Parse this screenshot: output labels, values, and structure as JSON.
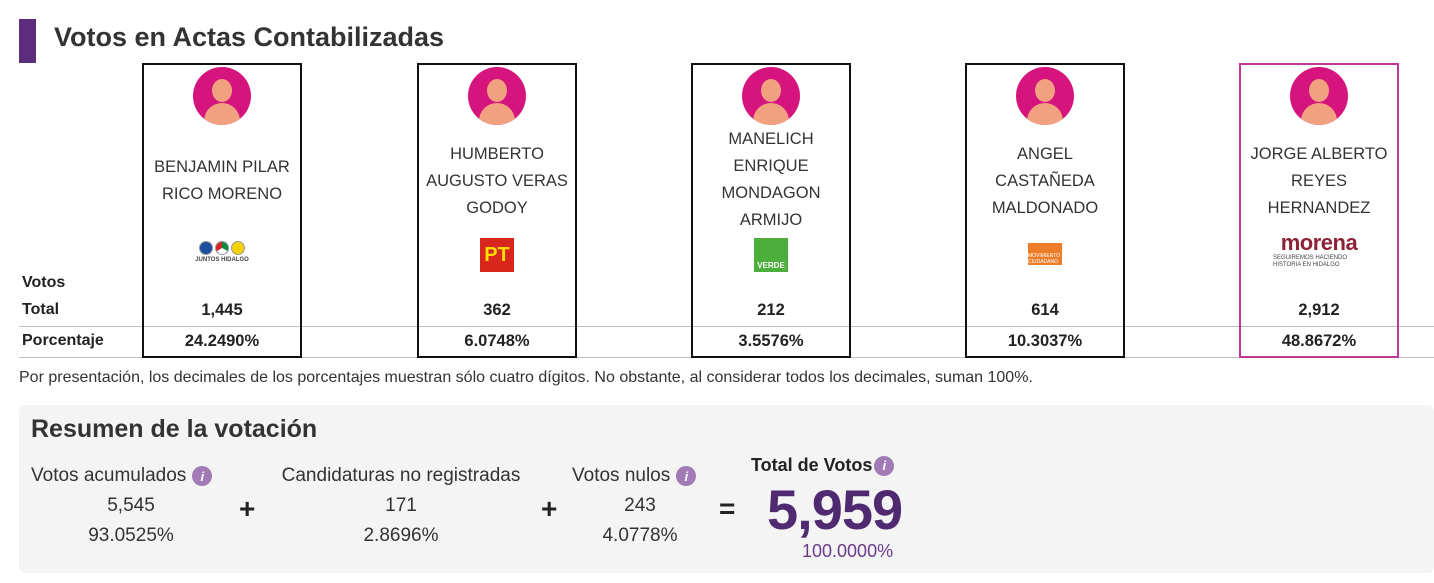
{
  "header": {
    "title": "Votos en Actas Contabilizadas"
  },
  "row_labels": {
    "votos": "Votos",
    "total": "Total",
    "porcentaje": "Porcentaje"
  },
  "candidates": [
    {
      "name": "BENJAMIN PILAR RICO MORENO",
      "party_icon": "coalition-pan-pri-prd-icon",
      "party_text": "JUNTOS HIDALGO",
      "votes": "1,445",
      "percent": "24.2490%"
    },
    {
      "name": "HUMBERTO AUGUSTO VERAS GODOY",
      "party_icon": "pt-logo-icon",
      "party_text": "PT",
      "votes": "362",
      "percent": "6.0748%"
    },
    {
      "name": "MANELICH ENRIQUE MONDAGON ARMIJO",
      "party_icon": "verde-logo-icon",
      "party_text": "VERDE",
      "votes": "212",
      "percent": "3.5576%"
    },
    {
      "name": "ANGEL CASTAÑEDA MALDONADO",
      "party_icon": "movimiento-ciudadano-logo-icon",
      "party_text": "MOVIMIENTO CIUDADANO",
      "votes": "614",
      "percent": "10.3037%"
    },
    {
      "name": "JORGE ALBERTO REYES HERNANDEZ",
      "party_icon": "morena-logo-icon",
      "party_text": "morena",
      "party_subtext": "SEGUIREMOS HACIENDO HISTORIA EN HIDALGO",
      "votes": "2,912",
      "percent": "48.8672%"
    }
  ],
  "note": "Por presentación, los decimales de los porcentajes muestran sólo cuatro dígitos. No obstante, al considerar todos los decimales, suman 100%.",
  "summary": {
    "title": "Resumen de la votación",
    "acumulados": {
      "label": "Votos acumulados",
      "value": "5,545",
      "percent": "93.0525%"
    },
    "no_registradas": {
      "label": "Candidaturas no registradas",
      "value": "171",
      "percent": "2.8696%"
    },
    "nulos": {
      "label": "Votos nulos",
      "value": "243",
      "percent": "4.0778%"
    },
    "total": {
      "label": "Total de Votos",
      "value": "5,959",
      "percent": "100.0000%"
    },
    "plus": "+",
    "equals": "=",
    "info_glyph": "i"
  },
  "colors": {
    "brand": "#5c2d7c",
    "avatar": "#d6147e",
    "winner_border": "#c2389a",
    "total_value": "#4f2a70"
  }
}
